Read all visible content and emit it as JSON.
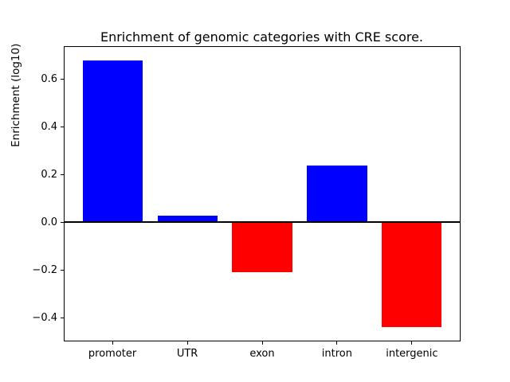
{
  "chart_data": {
    "type": "bar",
    "title": "Enrichment of genomic categories with CRE score.",
    "xlabel": "",
    "ylabel": "Enrichment (log10)",
    "categories": [
      "promoter",
      "UTR",
      "exon",
      "intron",
      "intergenic"
    ],
    "values": [
      0.68,
      0.03,
      -0.21,
      0.24,
      -0.44
    ],
    "bar_colors": [
      "#0000ff",
      "#0000ff",
      "#ff0000",
      "#0000ff",
      "#ff0000"
    ],
    "positive_color": "#0000ff",
    "negative_color": "#ff0000",
    "bar_width": 0.8,
    "xlim": [
      -0.64,
      4.64
    ],
    "ylim": [
      -0.496,
      0.736
    ],
    "ytick_values": [
      -0.4,
      -0.2,
      0.0,
      0.2,
      0.4,
      0.6
    ],
    "ytick_labels": [
      "−0.4",
      "−0.2",
      "0.0",
      "0.2",
      "0.4",
      "0.6"
    ],
    "zero_line": {
      "value": 0,
      "color": "#000000",
      "linewidth": 2
    },
    "grid": false,
    "legend": null,
    "frame_color": "#000000",
    "background_color": "#ffffff"
  }
}
